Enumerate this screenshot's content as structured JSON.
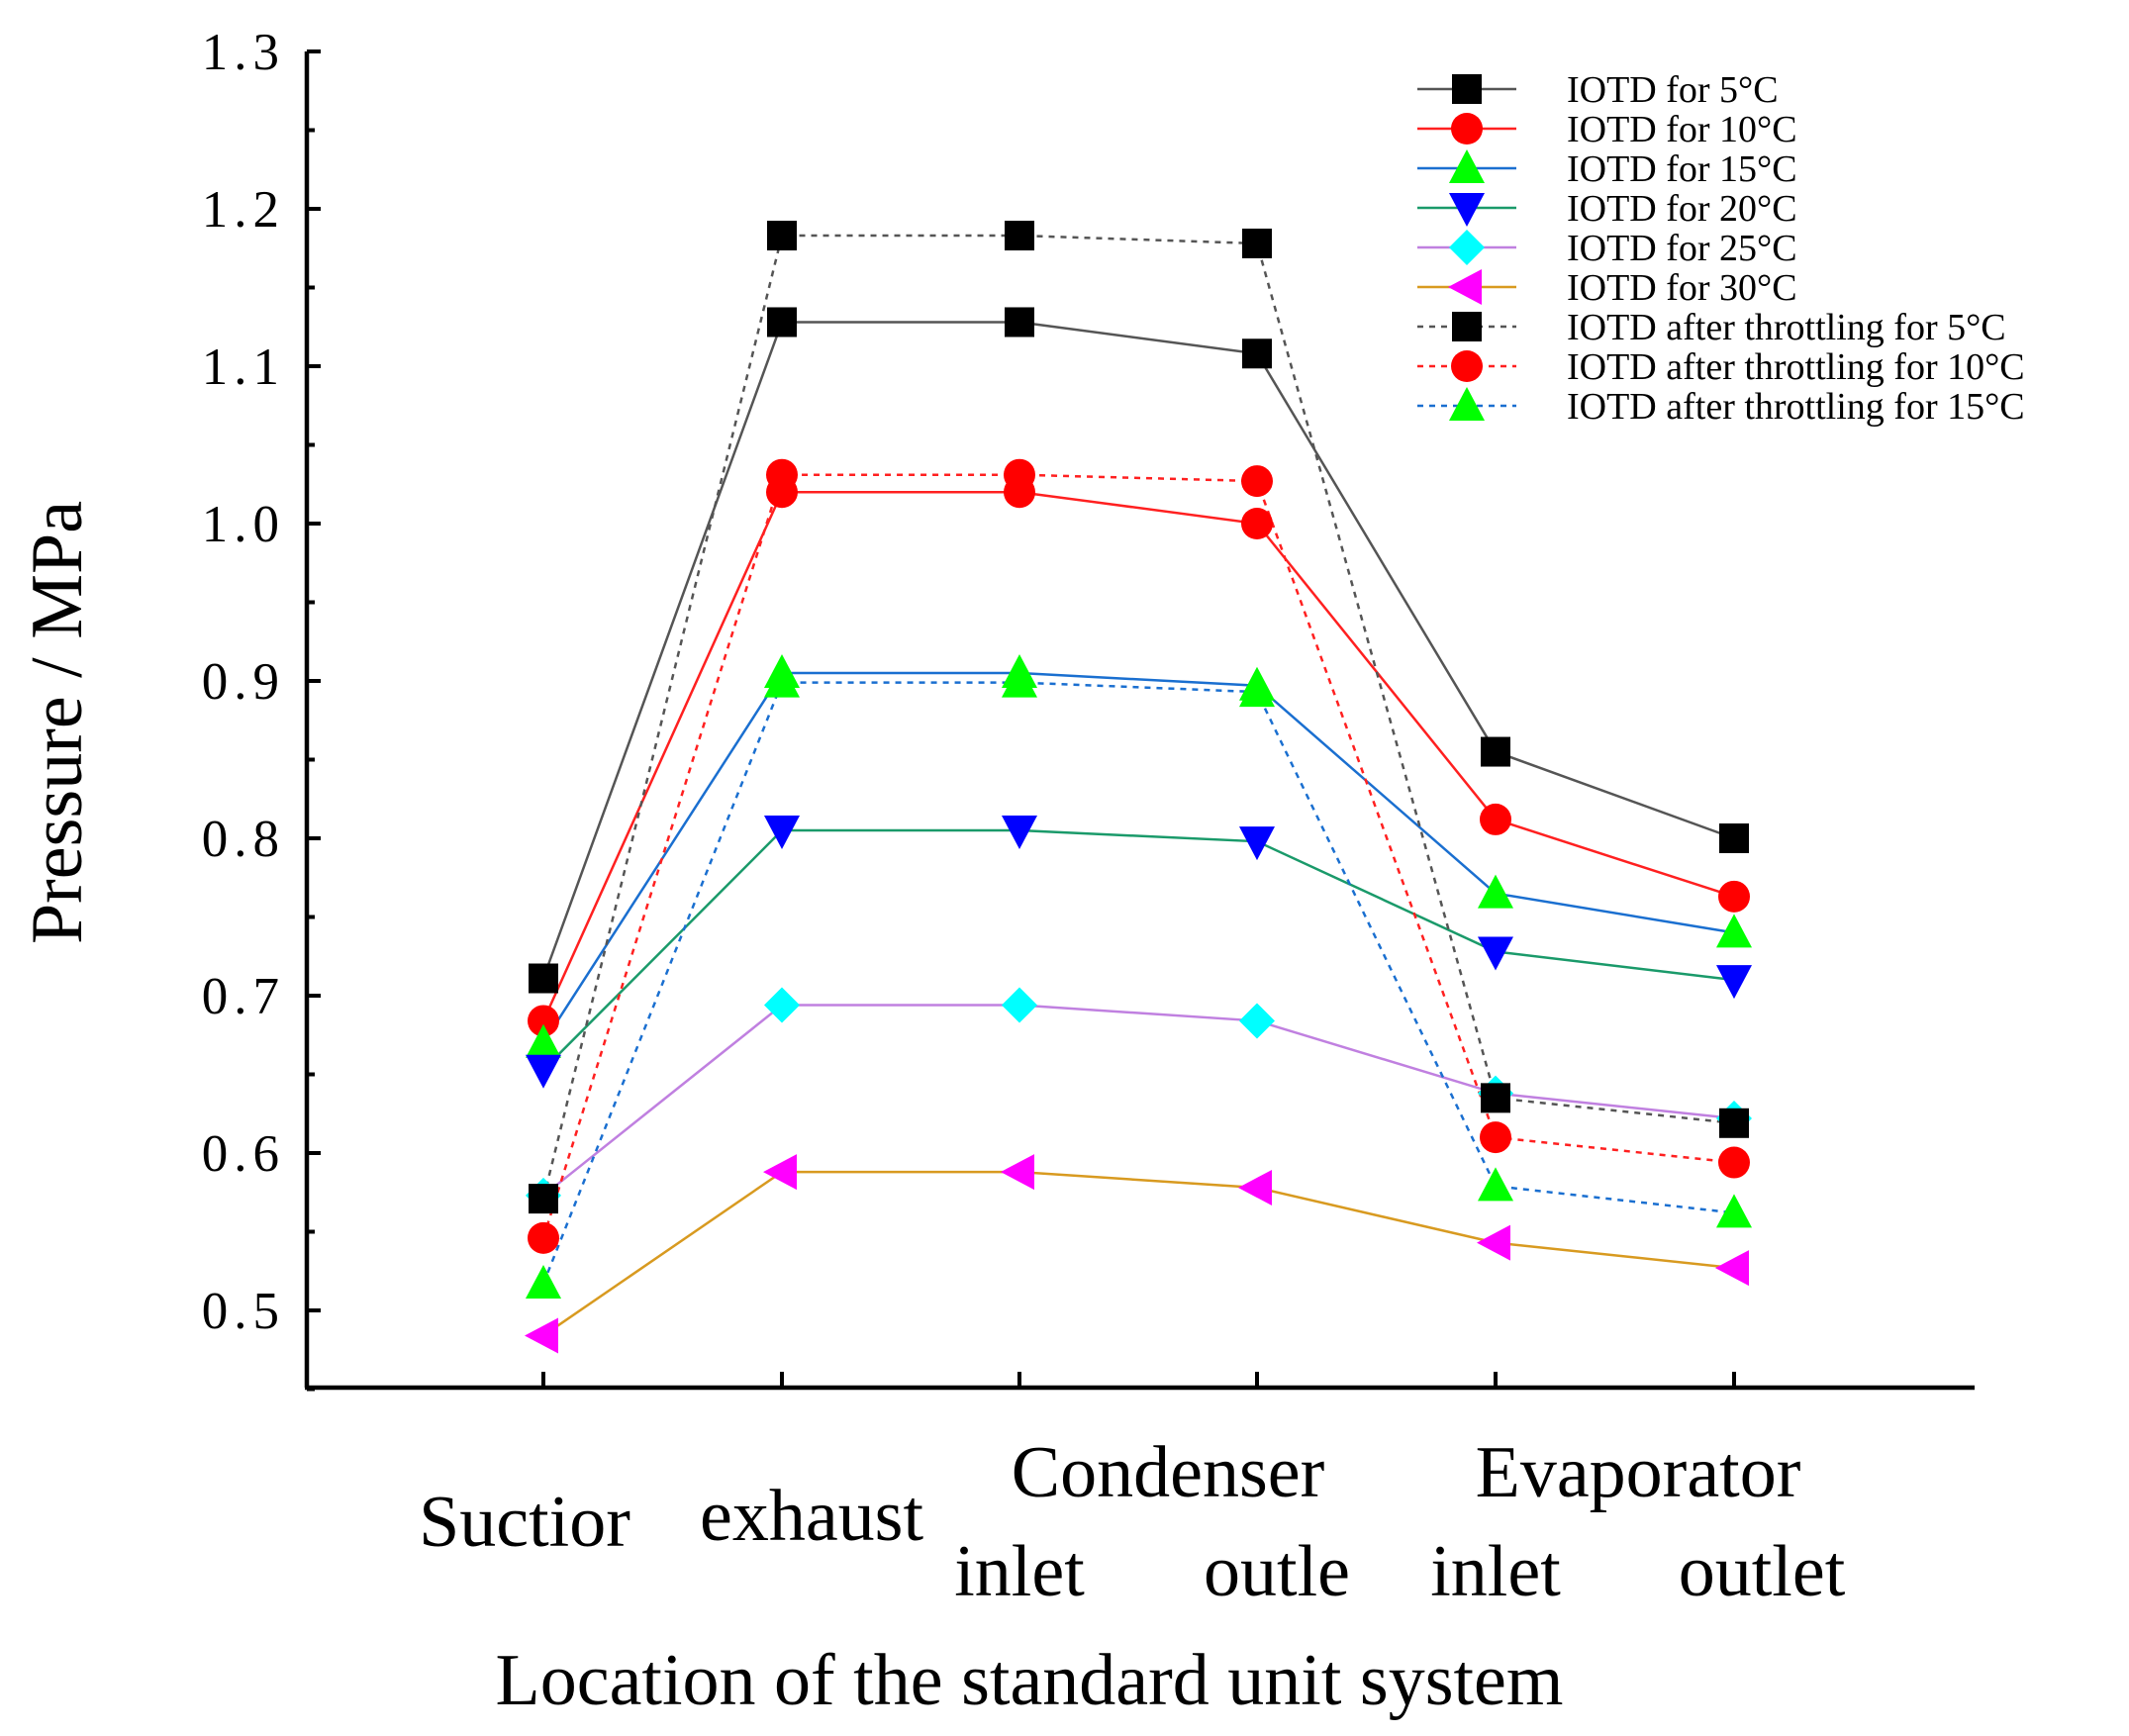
{
  "chart_data": {
    "type": "line",
    "title": "",
    "xlabel": "Location of the standard unit system",
    "ylabel": "Pressure / MPa",
    "ylim": [
      0.45,
      1.3
    ],
    "yticks": [
      "0.5",
      "0.6",
      "0.7",
      "0.8",
      "0.9",
      "1.0",
      "1.1",
      "1.2",
      "1.3"
    ],
    "categories": [
      [
        "Suctior"
      ],
      [
        "exhaust"
      ],
      [
        "Condenser",
        "inlet"
      ],
      [
        "outle"
      ],
      [
        "Evaporator",
        "inlet"
      ],
      [
        "outlet"
      ]
    ],
    "legend_position": "top-right",
    "series": [
      {
        "name": "IOTD for 5°C",
        "values": [
          0.711,
          1.128,
          1.128,
          1.108,
          0.855,
          0.8
        ],
        "color": "#000000",
        "line_color": "#555555",
        "marker": "square",
        "dashed": false
      },
      {
        "name": "IOTD for 10°C",
        "values": [
          0.684,
          1.02,
          1.02,
          1.0,
          0.812,
          0.763
        ],
        "color": "#ff0000",
        "line_color": "#ff2020",
        "marker": "circle",
        "dashed": false
      },
      {
        "name": "IOTD for 15°C",
        "values": [
          0.67,
          0.905,
          0.905,
          0.897,
          0.765,
          0.74
        ],
        "color": "#00ff00",
        "line_color": "#1a6fd0",
        "marker": "triangle-up",
        "dashed": false
      },
      {
        "name": "IOTD for 20°C",
        "values": [
          0.653,
          0.805,
          0.805,
          0.798,
          0.728,
          0.71
        ],
        "color": "#0000ff",
        "line_color": "#1a9a6a",
        "marker": "triangle-down",
        "dashed": false
      },
      {
        "name": "IOTD for 25°C",
        "values": [
          0.573,
          0.694,
          0.694,
          0.684,
          0.638,
          0.622
        ],
        "color": "#00ffff",
        "line_color": "#c080e0",
        "marker": "diamond",
        "dashed": false
      },
      {
        "name": "IOTD for 30°C",
        "values": [
          0.484,
          0.588,
          0.588,
          0.578,
          0.543,
          0.527
        ],
        "color": "#ff00ff",
        "line_color": "#d89a20",
        "marker": "triangle-left",
        "dashed": false
      },
      {
        "name": "IOTD after throttling for 5°C",
        "values": [
          0.571,
          1.183,
          1.183,
          1.178,
          0.635,
          0.619
        ],
        "color": "#000000",
        "line_color": "#555555",
        "marker": "square",
        "dashed": true
      },
      {
        "name": "IOTD after throttling for 10°C",
        "values": [
          0.546,
          1.031,
          1.031,
          1.027,
          0.61,
          0.594
        ],
        "color": "#ff0000",
        "line_color": "#ff2020",
        "marker": "circle",
        "dashed": true
      },
      {
        "name": "IOTD after throttling for 15°C",
        "values": [
          0.517,
          0.899,
          0.899,
          0.893,
          0.579,
          0.562
        ],
        "color": "#00ff00",
        "line_color": "#1a6fd0",
        "marker": "triangle-up",
        "dashed": true
      }
    ]
  }
}
